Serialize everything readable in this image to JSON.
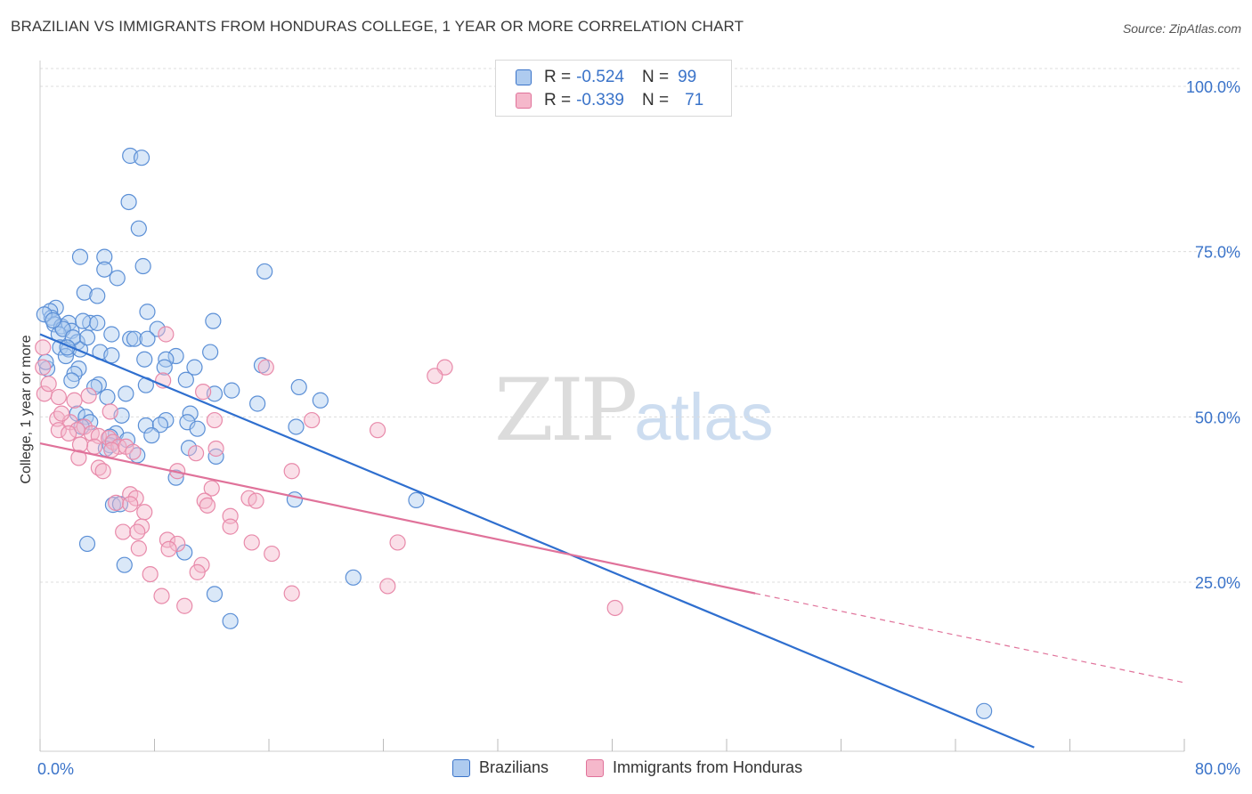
{
  "title": "BRAZILIAN VS IMMIGRANTS FROM HONDURAS COLLEGE, 1 YEAR OR MORE CORRELATION CHART",
  "source": "Source: ZipAtlas.com",
  "watermark": {
    "zip": "ZIP",
    "atlas": "atlas"
  },
  "colors": {
    "blue": "#3a73c9",
    "blue_fill": "#aecbef",
    "pink": "#e0729a",
    "pink_fill": "#f5b8cb",
    "grid": "#dddddd"
  },
  "legend": {
    "rows": [
      {
        "r_label": "R =",
        "r_value": "-0.524",
        "n_label": "N =",
        "n_value": "99"
      },
      {
        "r_label": "R =",
        "r_value": "-0.339",
        "n_label": "N =",
        "n_value": "71"
      }
    ]
  },
  "chart_data": {
    "type": "scatter",
    "xlabel": "",
    "ylabel": "College, 1 year or more",
    "xlim": [
      0,
      80
    ],
    "ylim": [
      0,
      105
    ],
    "x_tick_labels": [
      "0.0%",
      "80.0%"
    ],
    "y_ticks": [
      25,
      50,
      75,
      100
    ],
    "y_tick_labels": [
      "25.0%",
      "50.0%",
      "75.0%",
      "100.0%"
    ],
    "grid": "horizontal dashed",
    "legend_position": "top-center",
    "series": [
      {
        "name": "Brazilians",
        "color": "#3a73c9",
        "trend": {
          "x0": 0,
          "y0": 62.5,
          "x1": 69.5,
          "y1": 0
        },
        "points": [
          [
            6.3,
            89.5
          ],
          [
            7.1,
            89.2
          ],
          [
            6.2,
            82.5
          ],
          [
            6.9,
            78.5
          ],
          [
            2.8,
            74.2
          ],
          [
            4.5,
            74.2
          ],
          [
            4.5,
            72.3
          ],
          [
            7.2,
            72.8
          ],
          [
            5.4,
            71
          ],
          [
            15.7,
            72
          ],
          [
            3.1,
            68.8
          ],
          [
            4.0,
            68.3
          ],
          [
            1.1,
            66.5
          ],
          [
            0.7,
            66
          ],
          [
            7.5,
            65.9
          ],
          [
            0.8,
            65
          ],
          [
            1.0,
            64
          ],
          [
            1.5,
            63.7
          ],
          [
            2.0,
            64.2
          ],
          [
            3.5,
            64.2
          ],
          [
            3.0,
            64.5
          ],
          [
            4.0,
            64.2
          ],
          [
            12.1,
            64.5
          ],
          [
            2.2,
            63
          ],
          [
            1.3,
            62.5
          ],
          [
            8.2,
            63.3
          ],
          [
            5.0,
            62.5
          ],
          [
            6.3,
            61.8
          ],
          [
            6.6,
            61.8
          ],
          [
            7.5,
            61.8
          ],
          [
            2.6,
            61.3
          ],
          [
            1.4,
            60.5
          ],
          [
            2.0,
            60.2
          ],
          [
            2.8,
            60.2
          ],
          [
            4.2,
            59.8
          ],
          [
            5.0,
            59.3
          ],
          [
            11.9,
            59.8
          ],
          [
            9.5,
            59.2
          ],
          [
            8.8,
            58.7
          ],
          [
            7.3,
            58.7
          ],
          [
            1.8,
            59.2
          ],
          [
            15.5,
            57.8
          ],
          [
            10.8,
            57.5
          ],
          [
            2.7,
            57.3
          ],
          [
            0.5,
            57.3
          ],
          [
            2.4,
            56.5
          ],
          [
            10.2,
            55.6
          ],
          [
            2.2,
            55.5
          ],
          [
            4.1,
            54.9
          ],
          [
            3.8,
            54.5
          ],
          [
            7.4,
            54.8
          ],
          [
            13.4,
            54.0
          ],
          [
            18.1,
            54.5
          ],
          [
            12.2,
            53.5
          ],
          [
            4.7,
            53
          ],
          [
            19.6,
            52.5
          ],
          [
            15.2,
            52
          ],
          [
            2.6,
            50.5
          ],
          [
            3.2,
            50
          ],
          [
            10.5,
            50.5
          ],
          [
            3.5,
            49.2
          ],
          [
            8.8,
            49.5
          ],
          [
            10.3,
            49.2
          ],
          [
            7.4,
            48.7
          ],
          [
            8.4,
            48.8
          ],
          [
            17.9,
            48.5
          ],
          [
            5.3,
            47.5
          ],
          [
            4.9,
            47
          ],
          [
            6.1,
            46.5
          ],
          [
            4.9,
            45.7
          ],
          [
            4.6,
            45.2
          ],
          [
            10.4,
            45.3
          ],
          [
            6.8,
            44.2
          ],
          [
            12.3,
            44.0
          ],
          [
            9.5,
            40.8
          ],
          [
            17.8,
            37.5
          ],
          [
            26.3,
            37.4
          ],
          [
            5.1,
            36.7
          ],
          [
            5.6,
            36.8
          ],
          [
            3.3,
            30.8
          ],
          [
            10.1,
            29.5
          ],
          [
            5.9,
            27.6
          ],
          [
            21.9,
            25.7
          ],
          [
            12.2,
            23.2
          ],
          [
            13.3,
            19.1
          ],
          [
            66.0,
            5.5
          ],
          [
            0.3,
            65.5
          ],
          [
            1.6,
            63.3
          ],
          [
            2.3,
            62
          ],
          [
            0.9,
            64.6
          ],
          [
            3.3,
            62.0
          ],
          [
            1.9,
            60.5
          ],
          [
            8.7,
            57.5
          ],
          [
            6.0,
            53.5
          ],
          [
            11.0,
            48.2
          ],
          [
            2.9,
            48.5
          ],
          [
            7.8,
            47.2
          ],
          [
            5.7,
            50.2
          ],
          [
            0.4,
            58.3
          ]
        ]
      },
      {
        "name": "Immigrants from Honduras",
        "color": "#e0729a",
        "trend": {
          "x0": 0,
          "y0": 46,
          "x1": 50,
          "y1": 23.3,
          "dash_x1": 80,
          "dash_y1": 9.8
        },
        "points": [
          [
            0.2,
            60.5
          ],
          [
            0.2,
            57.5
          ],
          [
            0.3,
            53.5
          ],
          [
            0.6,
            55
          ],
          [
            1.3,
            53
          ],
          [
            2.4,
            52.5
          ],
          [
            3.4,
            53.2
          ],
          [
            4.9,
            50.8
          ],
          [
            8.8,
            62.5
          ],
          [
            15.8,
            57.5
          ],
          [
            28.3,
            57.5
          ],
          [
            27.6,
            56.2
          ],
          [
            11.4,
            53.8
          ],
          [
            8.6,
            55.5
          ],
          [
            1.2,
            49.7
          ],
          [
            2.1,
            49.2
          ],
          [
            3.1,
            48.5
          ],
          [
            1.3,
            48
          ],
          [
            2.6,
            48.0
          ],
          [
            3.6,
            47.5
          ],
          [
            4.1,
            47.1
          ],
          [
            4.8,
            46.8
          ],
          [
            5.1,
            46.2
          ],
          [
            5.5,
            45.5
          ],
          [
            6.0,
            45.5
          ],
          [
            3.8,
            45.5
          ],
          [
            2.8,
            45.8
          ],
          [
            12.2,
            49.5
          ],
          [
            19.0,
            49.5
          ],
          [
            23.6,
            48.0
          ],
          [
            12.3,
            45.2
          ],
          [
            10.9,
            44.5
          ],
          [
            6.5,
            44.7
          ],
          [
            2.7,
            43.8
          ],
          [
            4.1,
            42.3
          ],
          [
            4.4,
            41.8
          ],
          [
            9.6,
            41.8
          ],
          [
            17.6,
            41.8
          ],
          [
            12.0,
            39.2
          ],
          [
            6.3,
            38.3
          ],
          [
            6.7,
            37.7
          ],
          [
            5.3,
            37.0
          ],
          [
            6.3,
            36.8
          ],
          [
            11.5,
            37.3
          ],
          [
            14.6,
            37.7
          ],
          [
            15.1,
            37.3
          ],
          [
            11.7,
            36.6
          ],
          [
            7.3,
            35.6
          ],
          [
            13.3,
            35.0
          ],
          [
            7.1,
            33.4
          ],
          [
            5.8,
            32.6
          ],
          [
            6.8,
            32.6
          ],
          [
            13.3,
            33.4
          ],
          [
            8.9,
            31.4
          ],
          [
            9.6,
            30.8
          ],
          [
            14.8,
            31.0
          ],
          [
            25.0,
            31.0
          ],
          [
            6.9,
            30.1
          ],
          [
            9.0,
            30.0
          ],
          [
            16.2,
            29.3
          ],
          [
            11.3,
            27.6
          ],
          [
            11.0,
            26.5
          ],
          [
            7.7,
            26.2
          ],
          [
            24.3,
            24.4
          ],
          [
            8.5,
            22.9
          ],
          [
            17.6,
            23.3
          ],
          [
            10.1,
            21.4
          ],
          [
            40.2,
            21.1
          ],
          [
            1.5,
            50.5
          ],
          [
            5.0,
            45.0
          ],
          [
            2.0,
            47.5
          ]
        ]
      }
    ]
  }
}
